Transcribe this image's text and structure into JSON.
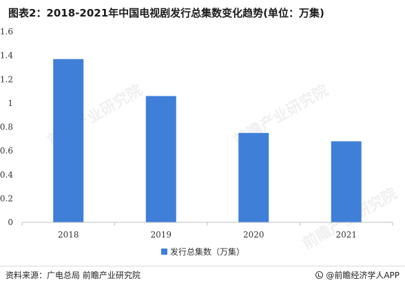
{
  "title": "图表2：2018-2021年中国电视剧发行总集数变化趋势(单位：万集)",
  "footer": {
    "source": "资料来源：广电总局 前瞻产业研究院",
    "brand": "@前瞻经济学人APP"
  },
  "watermark": "前瞻产业研究院",
  "colors": {
    "bar": "#3f7fd8",
    "axis": "#bfbfbf"
  },
  "chart_data": {
    "type": "bar",
    "categories": [
      "2018",
      "2019",
      "2020",
      "2021"
    ],
    "series": [
      {
        "name": "发行总集数（万集）",
        "values": [
          1.37,
          1.06,
          0.75,
          0.68
        ]
      }
    ],
    "ylim": [
      0,
      1.6
    ],
    "yticks": [
      "0",
      "0.2",
      "0.4",
      "0.6",
      "0.8",
      "1",
      "1.2",
      "1.4",
      "1.6"
    ],
    "xlabel": "",
    "ylabel": "",
    "grid": false,
    "legend_position": "bottom"
  }
}
